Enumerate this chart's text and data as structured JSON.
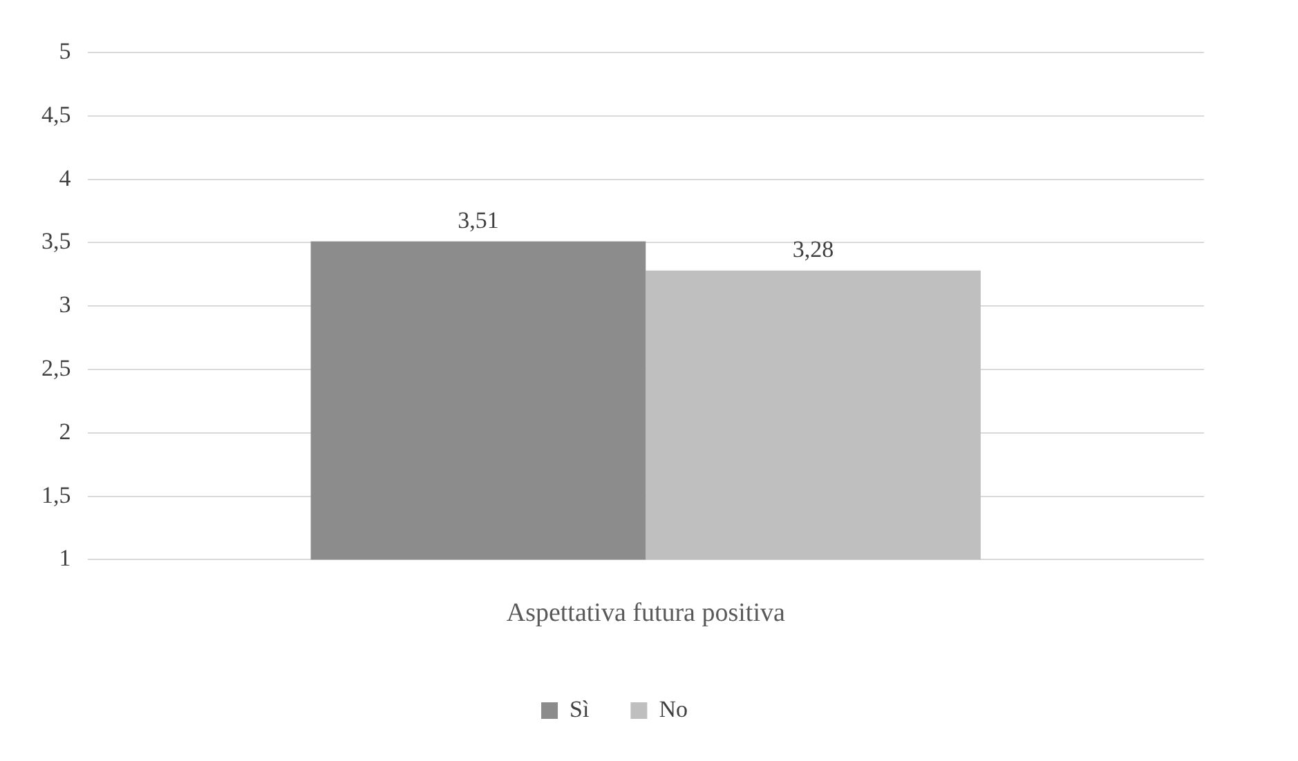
{
  "chart_data": {
    "type": "bar",
    "categories": [
      "Aspettativa futura positiva"
    ],
    "series": [
      {
        "name": "Sì",
        "color": "#8c8c8c",
        "values": [
          3.51
        ],
        "value_labels": [
          "3,51"
        ]
      },
      {
        "name": "No",
        "color": "#bfbfbf",
        "values": [
          3.28
        ],
        "value_labels": [
          "3,28"
        ]
      }
    ],
    "ylim": [
      1,
      5
    ],
    "yticks": [
      1,
      {
        "value": 1.5,
        "label": "1,5"
      },
      2,
      {
        "value": 2.5,
        "label": "2,5"
      },
      3,
      {
        "value": 3.5,
        "label": "3,5"
      },
      4,
      {
        "value": 4.5,
        "label": "4,5"
      },
      5
    ],
    "grid": "y",
    "legend": "bottom"
  }
}
